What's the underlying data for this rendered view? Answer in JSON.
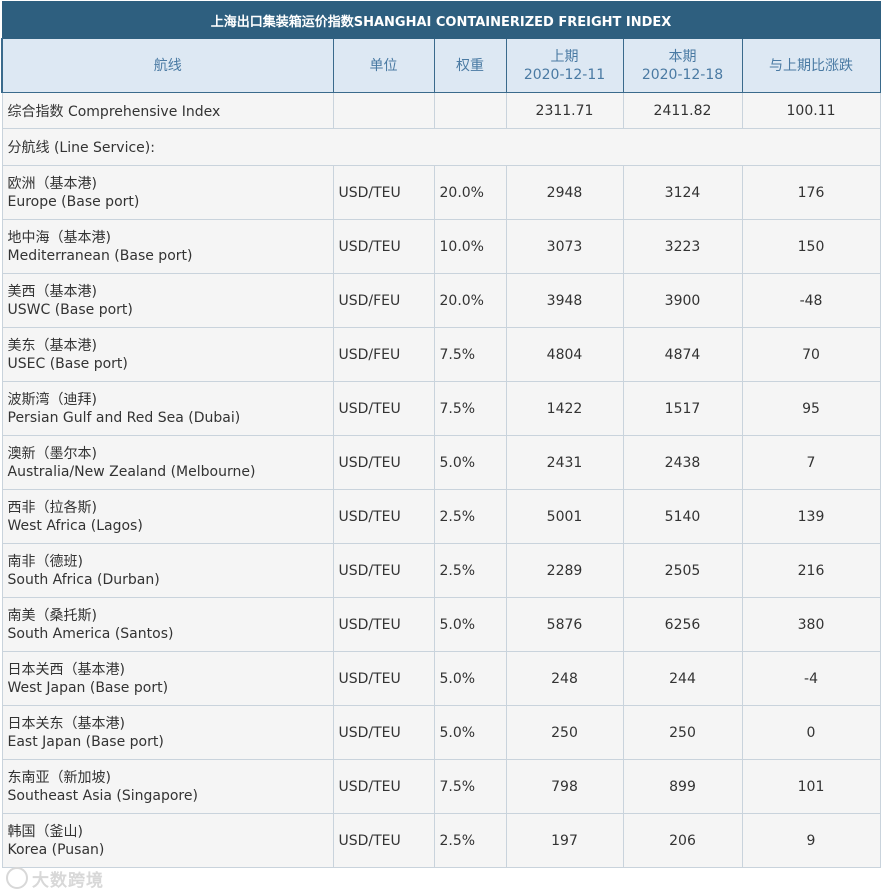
{
  "title": "上海出口集装箱运价指数SHANGHAI CONTAINERIZED FREIGHT INDEX",
  "columns": {
    "route": "航线",
    "unit": "单位",
    "weight": "权重",
    "prev_label": "上期",
    "prev_date": "2020-12-11",
    "curr_label": "本期",
    "curr_date": "2020-12-18",
    "change": "与上期比涨跌"
  },
  "comprehensive": {
    "label": "综合指数 Comprehensive Index",
    "prev": "2311.71",
    "curr": "2411.82",
    "change": "100.11"
  },
  "section_label": "分航线 (Line Service):",
  "rows": [
    {
      "cn": "欧洲（基本港)",
      "en": "Europe (Base port)",
      "unit": "USD/TEU",
      "weight": "20.0%",
      "prev": "2948",
      "curr": "3124",
      "change": "176"
    },
    {
      "cn": "地中海（基本港)",
      "en": "Mediterranean (Base port)",
      "unit": "USD/TEU",
      "weight": "10.0%",
      "prev": "3073",
      "curr": "3223",
      "change": "150"
    },
    {
      "cn": "美西（基本港)",
      "en": "USWC (Base port)",
      "unit": "USD/FEU",
      "weight": "20.0%",
      "prev": "3948",
      "curr": "3900",
      "change": "-48"
    },
    {
      "cn": "美东（基本港)",
      "en": "USEC (Base port)",
      "unit": "USD/FEU",
      "weight": "7.5%",
      "prev": "4804",
      "curr": "4874",
      "change": "70"
    },
    {
      "cn": "波斯湾（迪拜)",
      "en": "Persian Gulf and Red Sea (Dubai)",
      "unit": "USD/TEU",
      "weight": "7.5%",
      "prev": "1422",
      "curr": "1517",
      "change": "95"
    },
    {
      "cn": "澳新（墨尔本)",
      "en": "Australia/New Zealand (Melbourne)",
      "unit": "USD/TEU",
      "weight": "5.0%",
      "prev": "2431",
      "curr": "2438",
      "change": "7"
    },
    {
      "cn": "西非（拉各斯)",
      "en": "West Africa (Lagos)",
      "unit": "USD/TEU",
      "weight": "2.5%",
      "prev": "5001",
      "curr": "5140",
      "change": "139"
    },
    {
      "cn": "南非（德班)",
      "en": "South Africa (Durban)",
      "unit": "USD/TEU",
      "weight": "2.5%",
      "prev": "2289",
      "curr": "2505",
      "change": "216"
    },
    {
      "cn": "南美（桑托斯)",
      "en": "South America (Santos)",
      "unit": "USD/TEU",
      "weight": "5.0%",
      "prev": "5876",
      "curr": "6256",
      "change": "380"
    },
    {
      "cn": "日本关西（基本港)",
      "en": "West Japan (Base port)",
      "unit": "USD/TEU",
      "weight": "5.0%",
      "prev": "248",
      "curr": "244",
      "change": "-4"
    },
    {
      "cn": "日本关东（基本港)",
      "en": "East Japan (Base port)",
      "unit": "USD/TEU",
      "weight": "5.0%",
      "prev": "250",
      "curr": "250",
      "change": "0"
    },
    {
      "cn": "东南亚（新加坡)",
      "en": "Southeast Asia (Singapore)",
      "unit": "USD/TEU",
      "weight": "7.5%",
      "prev": "798",
      "curr": "899",
      "change": "101"
    },
    {
      "cn": "韩国（釜山)",
      "en": "Korea (Pusan)",
      "unit": "USD/TEU",
      "weight": "2.5%",
      "prev": "197",
      "curr": "206",
      "change": "9"
    }
  ],
  "watermark": {
    "text": "大数跨境",
    "icon": "circle-logo-icon"
  }
}
